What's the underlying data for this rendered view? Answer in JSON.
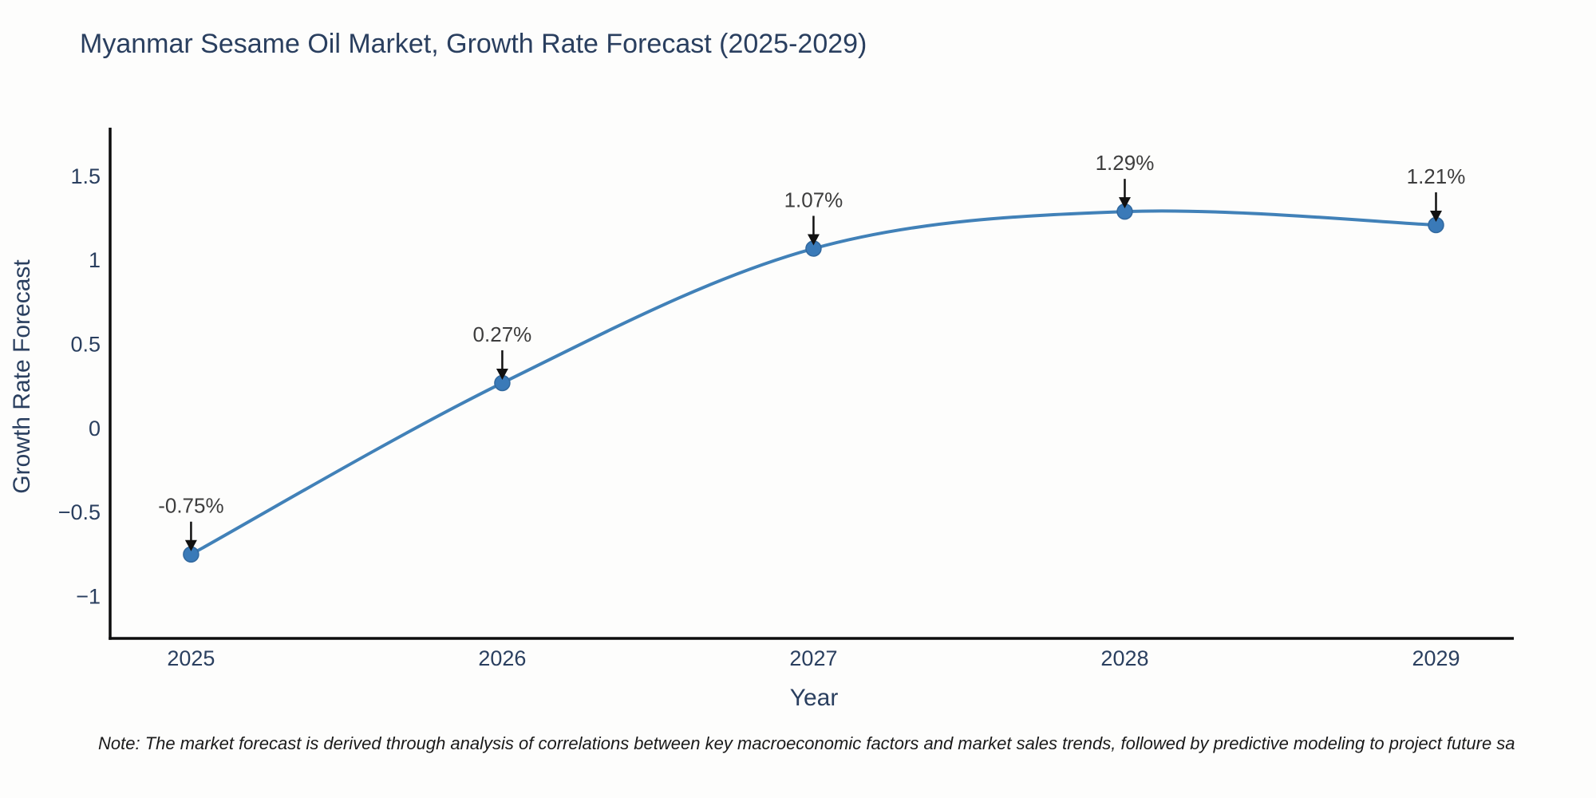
{
  "title": "Myanmar Sesame Oil Market, Growth Rate Forecast (2025-2029)",
  "note": "Note: The market forecast is derived through analysis of correlations between key macroeconomic factors and market sales trends, followed by predictive modeling to project future sa",
  "chart_data": {
    "type": "line",
    "title": "Myanmar Sesame Oil Market, Growth Rate Forecast (2025-2029)",
    "xlabel": "Year",
    "ylabel": "Growth Rate Forecast",
    "x": [
      2025,
      2026,
      2027,
      2028,
      2029
    ],
    "values": [
      -0.75,
      0.27,
      1.07,
      1.29,
      1.21
    ],
    "point_labels": [
      "-0.75%",
      "0.27%",
      "1.07%",
      "1.29%",
      "1.21%"
    ],
    "xtick_labels": [
      "2025",
      "2026",
      "2027",
      "2028",
      "2029"
    ],
    "yticks": [
      1.5,
      1,
      0.5,
      0,
      -0.5,
      -1
    ],
    "ytick_labels": [
      "1.5",
      "1",
      "0.5",
      "0",
      "−0.5",
      "−1"
    ],
    "xlim": [
      2024.74,
      2029.25
    ],
    "ylim": [
      -1.25,
      1.78
    ],
    "grid": false,
    "legend": "none",
    "line_shape": "spline",
    "annotation_arrows": "black arrow pointing down to each marker",
    "colors": {
      "line": "#4181b8",
      "marker_fill": "#3a7ab8",
      "marker_edge": "#31689e",
      "axis_line": "#0d0d0d",
      "heading_text": "#2a3f5f",
      "annotation_text": "#3d3d3d",
      "arrow": "#111111",
      "background": "#fdfdfc"
    }
  }
}
